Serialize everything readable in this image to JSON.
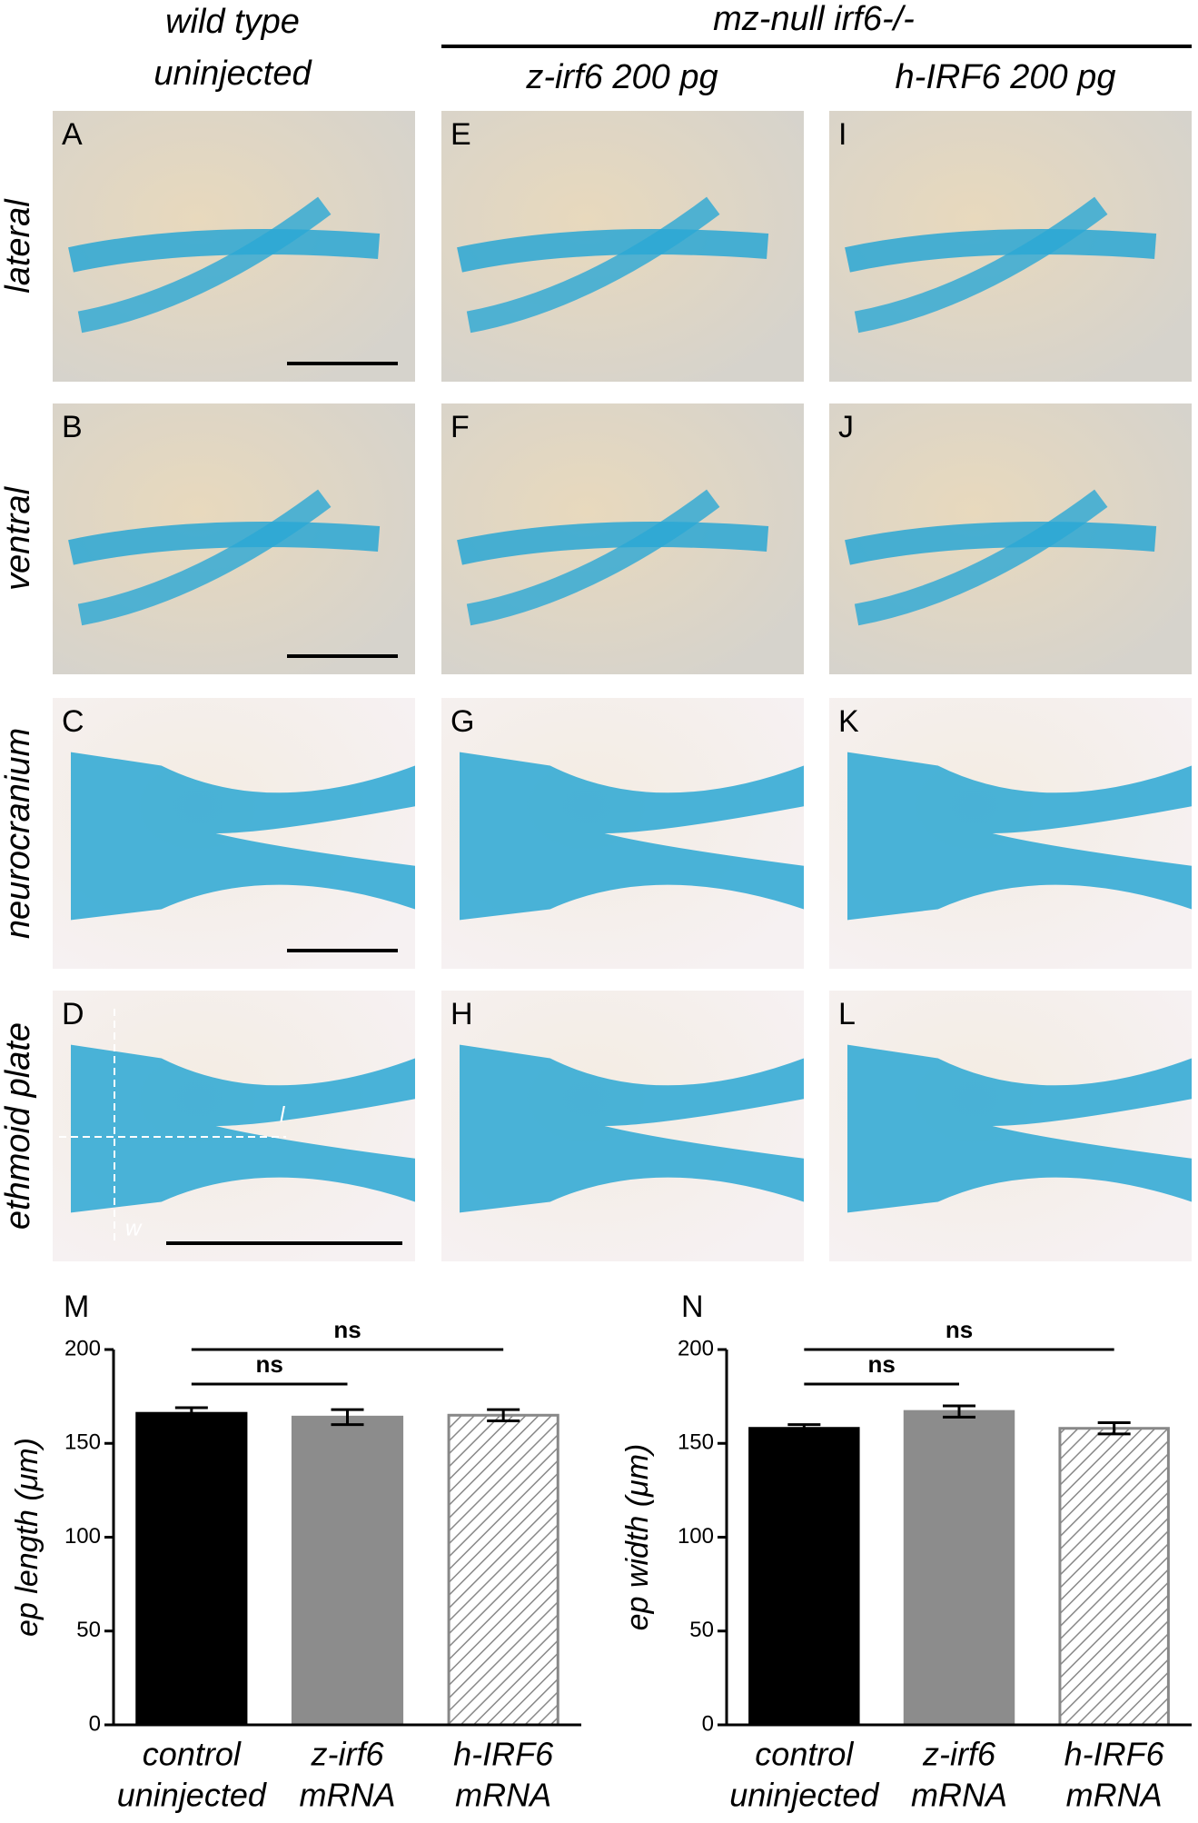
{
  "header": {
    "wild_type": [
      "wild type",
      "uninjected"
    ],
    "mutant": "mz-null irf6-/-",
    "columns": [
      "z-irf6 200 pg",
      "h-IRF6 200 pg"
    ]
  },
  "rows": [
    "lateral",
    "ventral",
    "neurocranium",
    "ethmoid plate"
  ],
  "panels": [
    [
      "A",
      "E",
      "I"
    ],
    [
      "B",
      "F",
      "J"
    ],
    [
      "C",
      "G",
      "K"
    ],
    [
      "D",
      "H",
      "L"
    ]
  ],
  "measure_labels": [
    "l",
    "w"
  ],
  "chart_data": [
    {
      "type": "bar",
      "panel": "M",
      "ylabel": "ep length (μm)",
      "categories": [
        [
          "control",
          "uninjected"
        ],
        [
          "z-irf6",
          "mRNA"
        ],
        [
          "h-IRF6",
          "mRNA"
        ]
      ],
      "values": [
        166,
        164,
        165
      ],
      "errors": [
        3,
        4,
        3
      ],
      "colors": [
        "#000000",
        "#8c8c8c",
        "#ffffff"
      ],
      "hatch": [
        false,
        false,
        true
      ],
      "ylim": [
        0,
        200
      ],
      "yticks": [
        0,
        50,
        100,
        150,
        200
      ],
      "annotations": [
        {
          "label": "ns",
          "from": 0,
          "to": 1
        },
        {
          "label": "ns",
          "from": 0,
          "to": 2
        }
      ]
    },
    {
      "type": "bar",
      "panel": "N",
      "ylabel": "ep width (μm)",
      "categories": [
        [
          "control",
          "uninjected"
        ],
        [
          "z-irf6",
          "mRNA"
        ],
        [
          "h-IRF6",
          "mRNA"
        ]
      ],
      "values": [
        158,
        167,
        158
      ],
      "errors": [
        2,
        3,
        3
      ],
      "colors": [
        "#000000",
        "#8c8c8c",
        "#ffffff"
      ],
      "hatch": [
        false,
        false,
        true
      ],
      "ylim": [
        0,
        200
      ],
      "yticks": [
        0,
        50,
        100,
        150,
        200
      ],
      "annotations": [
        {
          "label": "ns",
          "from": 0,
          "to": 1
        },
        {
          "label": "ns",
          "from": 0,
          "to": 2
        }
      ]
    }
  ]
}
